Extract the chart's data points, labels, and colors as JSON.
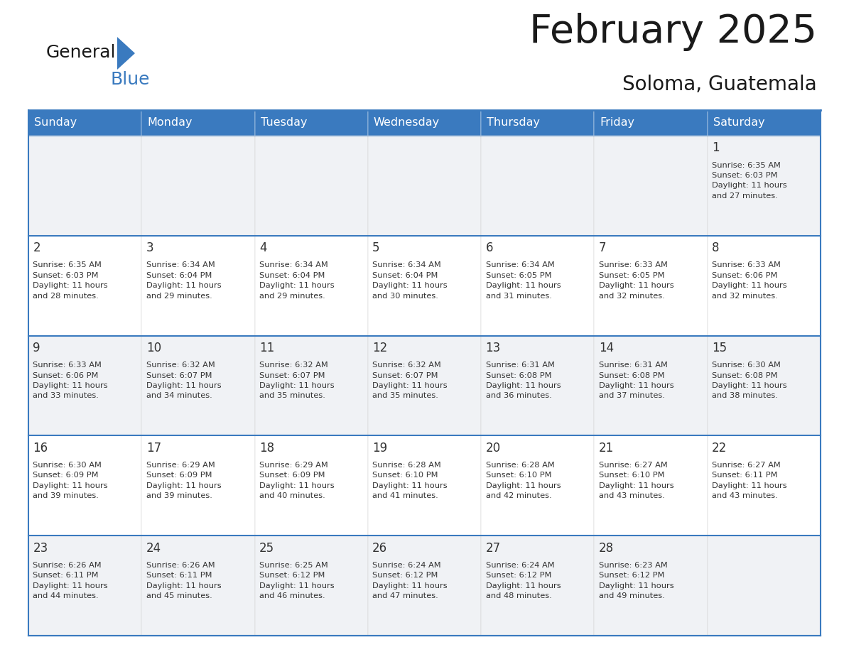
{
  "title": "February 2025",
  "subtitle": "Soloma, Guatemala",
  "header_bg_color": "#3a7abf",
  "header_text_color": "#ffffff",
  "cell_bg_white": "#ffffff",
  "cell_bg_gray": "#f0f2f5",
  "title_color": "#1a1a1a",
  "subtitle_color": "#1a1a1a",
  "day_number_color": "#333333",
  "cell_text_color": "#333333",
  "border_color": "#3a7abf",
  "separator_color": "#3a7abf",
  "days_of_week": [
    "Sunday",
    "Monday",
    "Tuesday",
    "Wednesday",
    "Thursday",
    "Friday",
    "Saturday"
  ],
  "logo_general_color": "#1a1a1a",
  "logo_blue_color": "#3a7abf",
  "logo_triangle_color": "#3a7abf",
  "weeks": [
    [
      {
        "day": null,
        "info": null
      },
      {
        "day": null,
        "info": null
      },
      {
        "day": null,
        "info": null
      },
      {
        "day": null,
        "info": null
      },
      {
        "day": null,
        "info": null
      },
      {
        "day": null,
        "info": null
      },
      {
        "day": 1,
        "info": "Sunrise: 6:35 AM\nSunset: 6:03 PM\nDaylight: 11 hours\nand 27 minutes."
      }
    ],
    [
      {
        "day": 2,
        "info": "Sunrise: 6:35 AM\nSunset: 6:03 PM\nDaylight: 11 hours\nand 28 minutes."
      },
      {
        "day": 3,
        "info": "Sunrise: 6:34 AM\nSunset: 6:04 PM\nDaylight: 11 hours\nand 29 minutes."
      },
      {
        "day": 4,
        "info": "Sunrise: 6:34 AM\nSunset: 6:04 PM\nDaylight: 11 hours\nand 29 minutes."
      },
      {
        "day": 5,
        "info": "Sunrise: 6:34 AM\nSunset: 6:04 PM\nDaylight: 11 hours\nand 30 minutes."
      },
      {
        "day": 6,
        "info": "Sunrise: 6:34 AM\nSunset: 6:05 PM\nDaylight: 11 hours\nand 31 minutes."
      },
      {
        "day": 7,
        "info": "Sunrise: 6:33 AM\nSunset: 6:05 PM\nDaylight: 11 hours\nand 32 minutes."
      },
      {
        "day": 8,
        "info": "Sunrise: 6:33 AM\nSunset: 6:06 PM\nDaylight: 11 hours\nand 32 minutes."
      }
    ],
    [
      {
        "day": 9,
        "info": "Sunrise: 6:33 AM\nSunset: 6:06 PM\nDaylight: 11 hours\nand 33 minutes."
      },
      {
        "day": 10,
        "info": "Sunrise: 6:32 AM\nSunset: 6:07 PM\nDaylight: 11 hours\nand 34 minutes."
      },
      {
        "day": 11,
        "info": "Sunrise: 6:32 AM\nSunset: 6:07 PM\nDaylight: 11 hours\nand 35 minutes."
      },
      {
        "day": 12,
        "info": "Sunrise: 6:32 AM\nSunset: 6:07 PM\nDaylight: 11 hours\nand 35 minutes."
      },
      {
        "day": 13,
        "info": "Sunrise: 6:31 AM\nSunset: 6:08 PM\nDaylight: 11 hours\nand 36 minutes."
      },
      {
        "day": 14,
        "info": "Sunrise: 6:31 AM\nSunset: 6:08 PM\nDaylight: 11 hours\nand 37 minutes."
      },
      {
        "day": 15,
        "info": "Sunrise: 6:30 AM\nSunset: 6:08 PM\nDaylight: 11 hours\nand 38 minutes."
      }
    ],
    [
      {
        "day": 16,
        "info": "Sunrise: 6:30 AM\nSunset: 6:09 PM\nDaylight: 11 hours\nand 39 minutes."
      },
      {
        "day": 17,
        "info": "Sunrise: 6:29 AM\nSunset: 6:09 PM\nDaylight: 11 hours\nand 39 minutes."
      },
      {
        "day": 18,
        "info": "Sunrise: 6:29 AM\nSunset: 6:09 PM\nDaylight: 11 hours\nand 40 minutes."
      },
      {
        "day": 19,
        "info": "Sunrise: 6:28 AM\nSunset: 6:10 PM\nDaylight: 11 hours\nand 41 minutes."
      },
      {
        "day": 20,
        "info": "Sunrise: 6:28 AM\nSunset: 6:10 PM\nDaylight: 11 hours\nand 42 minutes."
      },
      {
        "day": 21,
        "info": "Sunrise: 6:27 AM\nSunset: 6:10 PM\nDaylight: 11 hours\nand 43 minutes."
      },
      {
        "day": 22,
        "info": "Sunrise: 6:27 AM\nSunset: 6:11 PM\nDaylight: 11 hours\nand 43 minutes."
      }
    ],
    [
      {
        "day": 23,
        "info": "Sunrise: 6:26 AM\nSunset: 6:11 PM\nDaylight: 11 hours\nand 44 minutes."
      },
      {
        "day": 24,
        "info": "Sunrise: 6:26 AM\nSunset: 6:11 PM\nDaylight: 11 hours\nand 45 minutes."
      },
      {
        "day": 25,
        "info": "Sunrise: 6:25 AM\nSunset: 6:12 PM\nDaylight: 11 hours\nand 46 minutes."
      },
      {
        "day": 26,
        "info": "Sunrise: 6:24 AM\nSunset: 6:12 PM\nDaylight: 11 hours\nand 47 minutes."
      },
      {
        "day": 27,
        "info": "Sunrise: 6:24 AM\nSunset: 6:12 PM\nDaylight: 11 hours\nand 48 minutes."
      },
      {
        "day": 28,
        "info": "Sunrise: 6:23 AM\nSunset: 6:12 PM\nDaylight: 11 hours\nand 49 minutes."
      },
      {
        "day": null,
        "info": null
      }
    ]
  ]
}
